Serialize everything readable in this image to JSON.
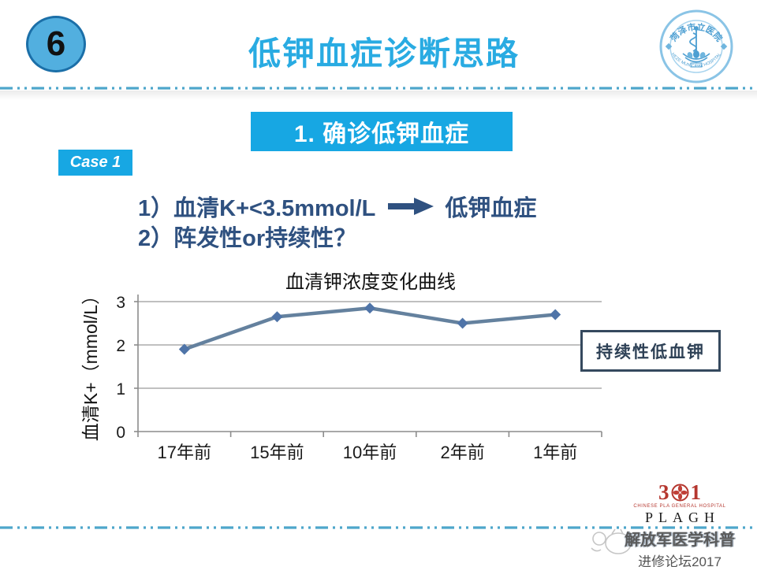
{
  "slide": {
    "badge_number": "6",
    "header_title": "低钾血症诊断思路",
    "section_title": "1. 确诊低钾血症",
    "case_label": "Case 1",
    "point1_text": "1）血清K+<3.5mmol/L",
    "point1_result": "低钾血症",
    "point2_text": "2）阵发性or持续性？"
  },
  "hospital_logo": {
    "name_cn": "菏泽市立医院",
    "name_en": "HEZE MUNICIPAL HOSPITAL"
  },
  "footer": {
    "logo_3": "3",
    "logo_1": "1",
    "hospital_full": "CHINESE PLA GENERAL HOSPITAL",
    "hospital_abbr": "PLAGH",
    "watermark_line": "解放军医学科普",
    "forum_line": "进修论坛2017"
  },
  "chart_data": {
    "type": "line",
    "title": "血清钾浓度变化曲线",
    "xlabel": "",
    "ylabel": "血清K+（mmol/L）",
    "categories": [
      "17年前",
      "15年前",
      "10年前",
      "2年前",
      "1年前"
    ],
    "series": [
      {
        "name": "血清K+",
        "values": [
          1.9,
          2.65,
          2.85,
          2.5,
          2.7
        ]
      }
    ],
    "ylim": [
      0,
      3
    ],
    "yticks": [
      0,
      1,
      2,
      3
    ],
    "grid": true,
    "legend": false,
    "line_color": "#64819E",
    "marker_color": "#4F74A8",
    "annotation": "持续性低血钾"
  },
  "colors": {
    "accent_cyan": "#29ABE2",
    "banner_blue": "#17A7E3",
    "navy_text": "#2F5180",
    "dashed_line": "#4EA6CB",
    "logo_red": "#B5372F",
    "box_border": "#35495E"
  }
}
